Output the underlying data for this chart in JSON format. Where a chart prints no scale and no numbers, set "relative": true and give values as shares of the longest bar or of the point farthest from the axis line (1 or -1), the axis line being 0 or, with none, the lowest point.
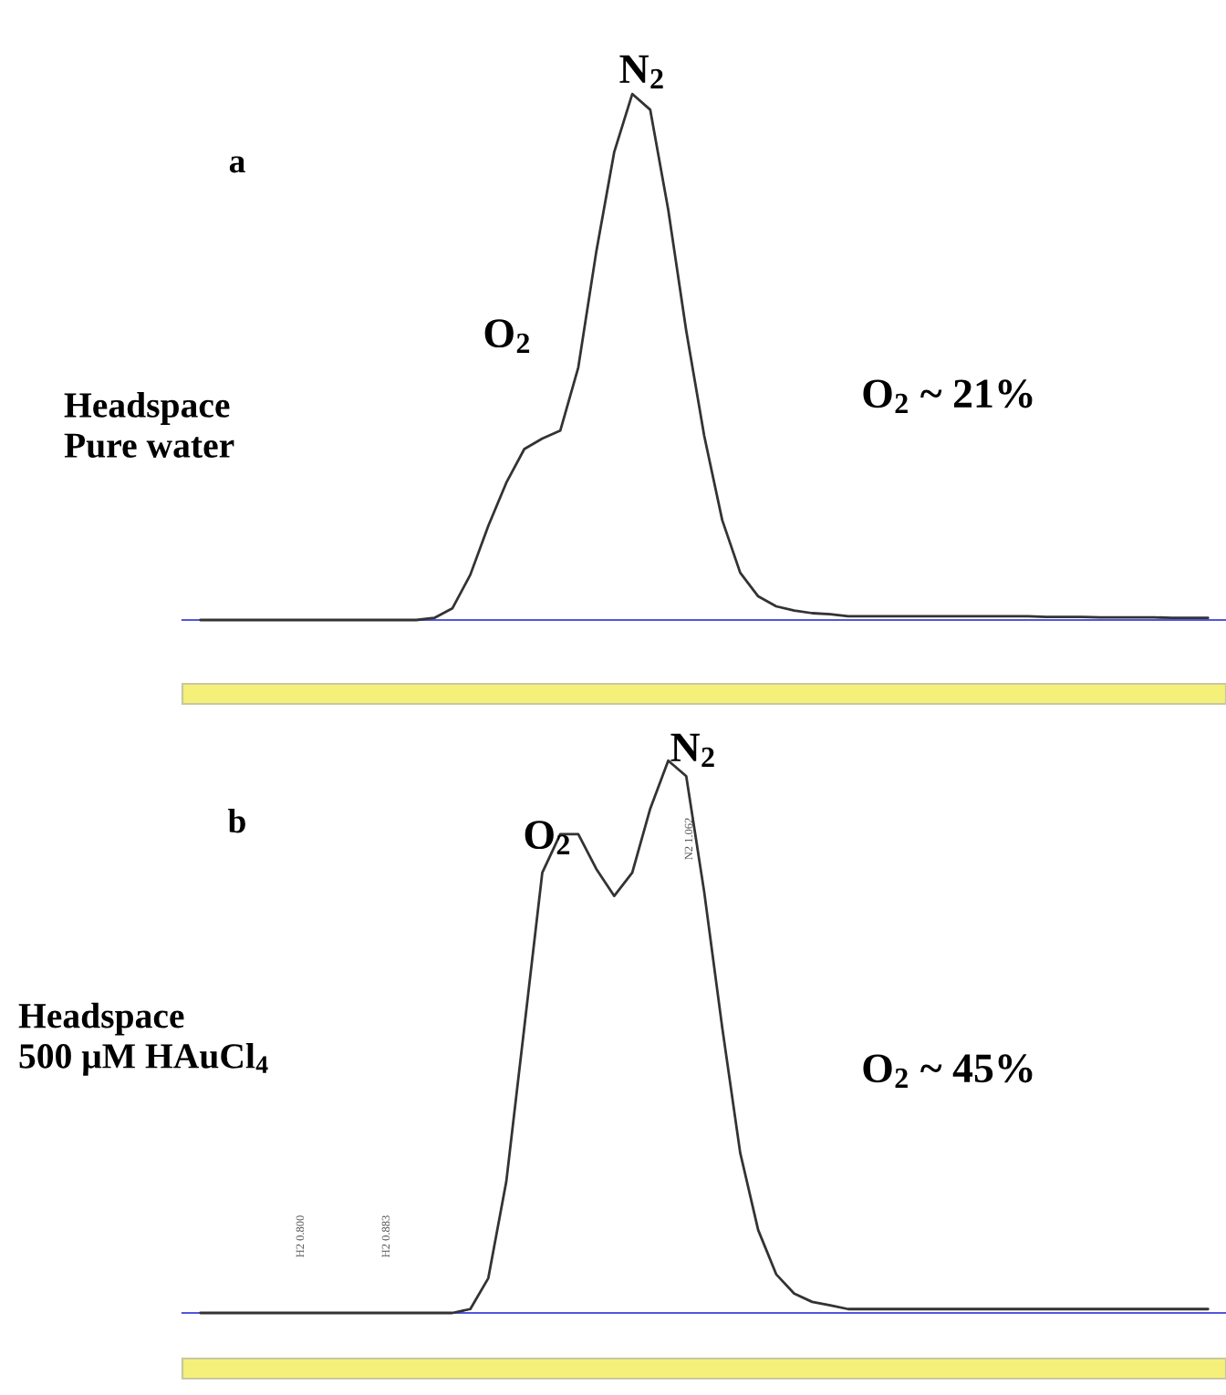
{
  "chart_data": [
    {
      "type": "line",
      "relative": true,
      "legend": false,
      "marker": "none",
      "line_style": "solid",
      "categories": [
        null,
        null,
        null,
        null,
        null,
        null,
        null,
        null,
        null,
        null,
        null,
        null,
        null,
        null,
        null,
        null,
        null,
        null,
        null,
        null,
        null,
        null,
        null,
        null,
        null,
        null,
        null,
        null,
        null,
        null,
        null,
        null,
        null,
        null,
        null,
        null,
        null,
        null,
        null,
        null,
        null,
        null,
        null,
        null,
        null,
        null,
        null,
        null,
        null,
        null,
        null,
        null,
        null,
        null,
        null,
        null,
        null
      ],
      "series": [
        {
          "color": "#333333",
          "values": [
            0,
            0,
            0,
            0,
            0,
            0,
            0,
            0,
            0,
            0,
            0,
            0,
            0,
            0.004,
            0.022,
            0.086,
            0.179,
            0.261,
            0.325,
            0.345,
            0.36,
            0.48,
            0.7,
            0.89,
            1,
            0.97,
            0.78,
            0.55,
            0.35,
            0.19,
            0.09,
            0.045,
            0.026,
            0.018,
            0.013,
            0.011,
            0.007,
            0.007,
            0.007,
            0.007,
            0.007,
            0.007,
            0.007,
            0.007,
            0.007,
            0.007,
            0.007,
            0.006,
            0.006,
            0.006,
            0.005,
            0.005,
            0.005,
            0.005,
            0.004,
            0.004,
            0.004
          ]
        }
      ],
      "annotations": [
        "a",
        "N$_{2}$",
        "O$_{2}$",
        "Headspace\nPure water",
        "O$_{2}$ ~ 21%"
      ]
    },
    {
      "type": "line",
      "relative": true,
      "legend": false,
      "marker": "none",
      "line_style": "solid",
      "categories": [
        null,
        null,
        null,
        null,
        null,
        null,
        null,
        null,
        null,
        null,
        null,
        null,
        null,
        null,
        null,
        null,
        null,
        null,
        null,
        null,
        null,
        null,
        null,
        null,
        null,
        null,
        null,
        null,
        null,
        null,
        null,
        null,
        null,
        null,
        null,
        null,
        null,
        null,
        null,
        null,
        null,
        null,
        null,
        null,
        null,
        null,
        null,
        null,
        null,
        null,
        null,
        null,
        null,
        null,
        null,
        null,
        null
      ],
      "series": [
        {
          "color": "#333333",
          "values": [
            0,
            0,
            0,
            0,
            0,
            0,
            0,
            0,
            0,
            0,
            0,
            0,
            0,
            0,
            0,
            0.007,
            0.063,
            0.238,
            0.517,
            0.797,
            0.867,
            0.867,
            0.804,
            0.755,
            0.797,
            0.913,
            1,
            0.972,
            0.762,
            0.517,
            0.29,
            0.15,
            0.07,
            0.035,
            0.02,
            0.014,
            0.007,
            0.007,
            0.007,
            0.007,
            0.007,
            0.007,
            0.007,
            0.007,
            0.007,
            0.007,
            0.007,
            0.007,
            0.007,
            0.007,
            0.007,
            0.007,
            0.007,
            0.007,
            0.007,
            0.007,
            0.007
          ]
        }
      ],
      "annotations": [
        "b",
        "O$_{2}$",
        "N$_{2}$",
        "Headspace\n500 μM HAuCl$_{4}$",
        "O$_{2}$ ~ 45%",
        "H2 0.800",
        "H2 0.883",
        "N2 1.062"
      ]
    }
  ]
}
